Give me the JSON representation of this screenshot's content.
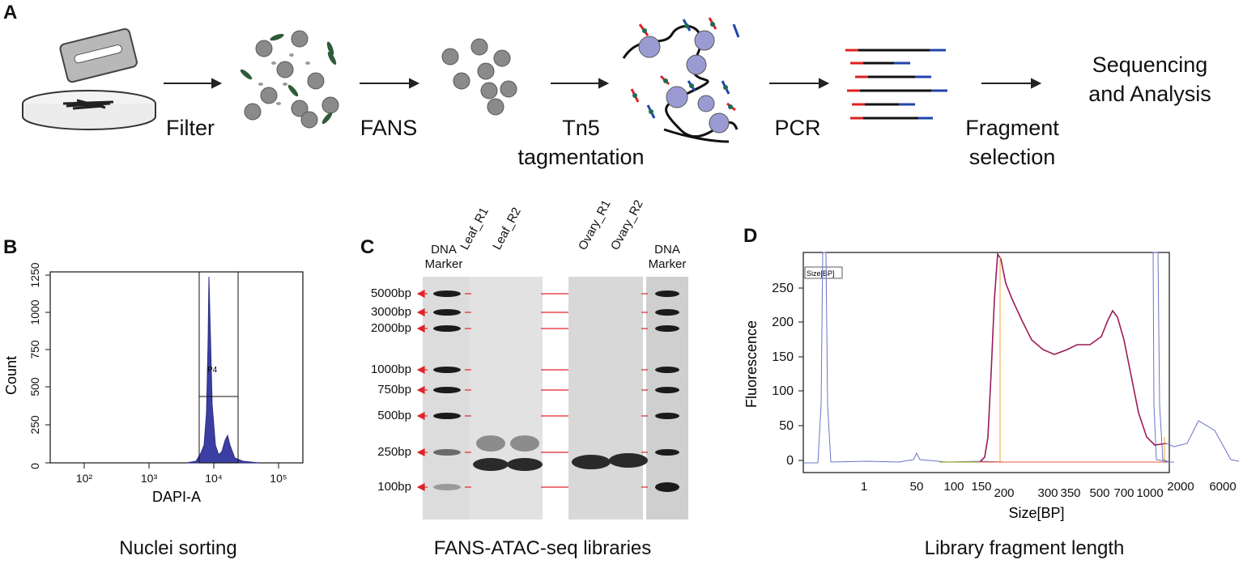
{
  "panels": {
    "a": "A",
    "b": "B",
    "c": "C",
    "d": "D"
  },
  "workflow": {
    "steps": [
      "Filter",
      "FANS",
      "Tn5\ntagmentation",
      "PCR",
      "Fragment\nselection"
    ],
    "final": "Sequencing\nand Analysis"
  },
  "panel_b": {
    "caption": "Nuclei sorting",
    "ylabel": "Count",
    "xlabel": "DAPI-A",
    "yticks": [
      "0",
      "250",
      "500",
      "750",
      "1000",
      "1250"
    ],
    "xticks": [
      "10²",
      "10³",
      "10⁴",
      "10⁵"
    ],
    "gate": "P4"
  },
  "panel_c": {
    "caption": "FANS-ATAC-seq libraries",
    "lane_labels": [
      "DNA\nMarker",
      "Leaf_R1",
      "Leaf_R2",
      "Ovary_R1",
      "Ovary_R2",
      "DNA\nMarker"
    ],
    "bp_labels": [
      "5000bp",
      "3000bp",
      "2000bp",
      "1000bp",
      "750bp",
      "500bp",
      "250bp",
      "100bp"
    ]
  },
  "panel_d": {
    "caption": "Library fragment length",
    "ylabel": "Fluorescence",
    "xlabel": "Size[BP]",
    "yticks": [
      "0",
      "50",
      "100",
      "150",
      "200",
      "250"
    ],
    "xticks": [
      "1",
      "50",
      "100",
      "150",
      "200",
      "300",
      "350",
      "500",
      "700",
      "1000",
      "2000",
      "6000"
    ],
    "legend": "Size[BP]"
  },
  "colors": {
    "histogram": "#3b3fa3",
    "trace": "#9b1b5a",
    "marker_arrow": "#e0242b"
  }
}
